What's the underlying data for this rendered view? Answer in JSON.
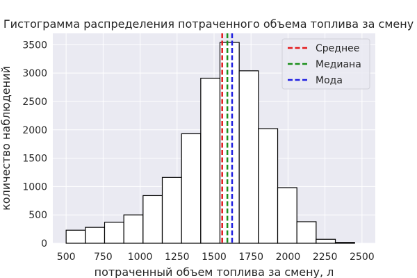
{
  "chart_data": {
    "type": "bar",
    "title": "Гистограмма распределения потраченного объема топлива за смену",
    "xlabel": "потраченный объем топлива за смену, л",
    "ylabel": "количество наблюдений",
    "xlim": [
      410,
      2590
    ],
    "ylim": [
      0,
      3700
    ],
    "xticks": [
      500,
      750,
      1000,
      1250,
      1500,
      1750,
      2000,
      2250,
      2500
    ],
    "yticks": [
      0,
      500,
      1000,
      1500,
      2000,
      2500,
      3000,
      3500
    ],
    "grid": true,
    "bins": [
      {
        "x0": 500,
        "x1": 630,
        "count": 230
      },
      {
        "x0": 630,
        "x1": 760,
        "count": 280
      },
      {
        "x0": 760,
        "x1": 890,
        "count": 370
      },
      {
        "x0": 890,
        "x1": 1020,
        "count": 500
      },
      {
        "x0": 1020,
        "x1": 1150,
        "count": 840
      },
      {
        "x0": 1150,
        "x1": 1280,
        "count": 1160
      },
      {
        "x0": 1280,
        "x1": 1410,
        "count": 1930
      },
      {
        "x0": 1410,
        "x1": 1540,
        "count": 2910
      },
      {
        "x0": 1540,
        "x1": 1670,
        "count": 3540
      },
      {
        "x0": 1670,
        "x1": 1800,
        "count": 3040
      },
      {
        "x0": 1800,
        "x1": 1930,
        "count": 2020
      },
      {
        "x0": 1930,
        "x1": 2060,
        "count": 980
      },
      {
        "x0": 2060,
        "x1": 2190,
        "count": 380
      },
      {
        "x0": 2190,
        "x1": 2320,
        "count": 70
      },
      {
        "x0": 2320,
        "x1": 2450,
        "count": 15
      }
    ],
    "vlines": [
      {
        "name": "Среднее",
        "x": 1555,
        "color": "#e41a1c"
      },
      {
        "name": "Медиана",
        "x": 1590,
        "color": "#1a8f1a"
      },
      {
        "name": "Мода",
        "x": 1622,
        "color": "#1f1fe0"
      }
    ],
    "legend_position": "top-right",
    "colors": {
      "background": "#eaeaf2",
      "bar_fill": "#ffffff",
      "bar_edge": "#000000",
      "grid": "#ffffff"
    }
  }
}
